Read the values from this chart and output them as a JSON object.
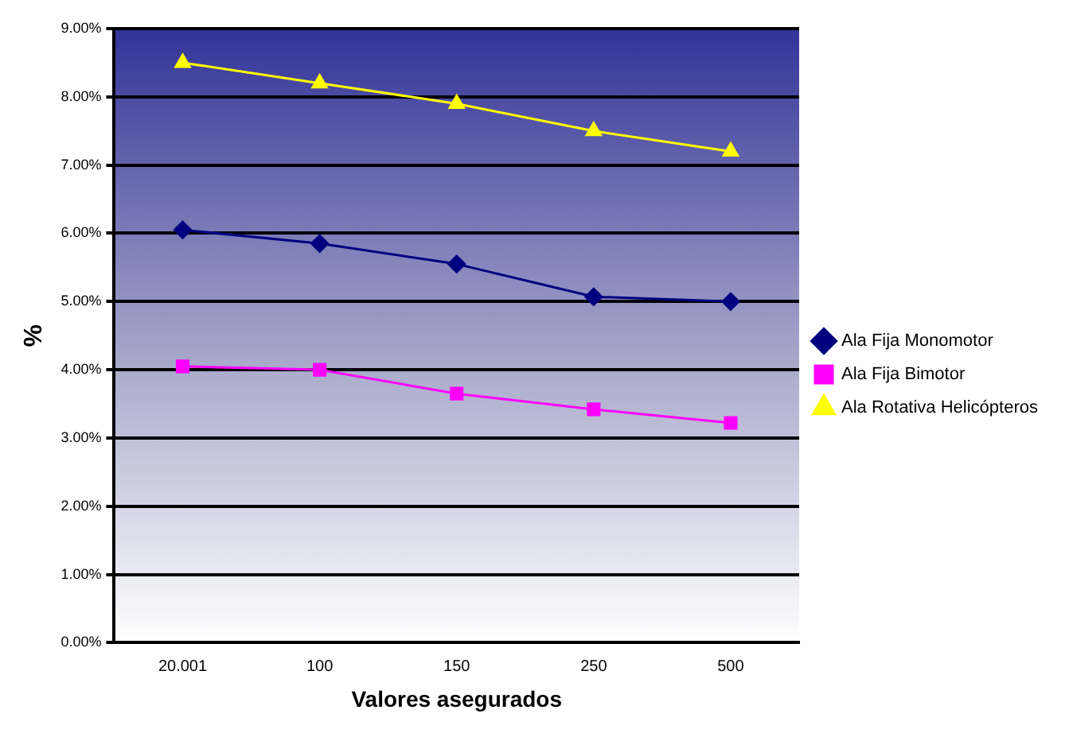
{
  "chart_data": {
    "type": "line",
    "xlabel": "Valores asegurados",
    "ylabel": "%",
    "categories": [
      "20.001",
      "100",
      "150",
      "250",
      "500"
    ],
    "series": [
      {
        "name": "Ala Fija Monomotor",
        "color": "#000080",
        "marker": "diamond",
        "values": [
          6.05,
          5.85,
          5.55,
          5.07,
          5.0
        ]
      },
      {
        "name": "Ala Fija Bimotor",
        "color": "#ff00ff",
        "marker": "square",
        "values": [
          4.05,
          4.0,
          3.65,
          3.42,
          3.22
        ]
      },
      {
        "name": "Ala Rotativa Helicópteros",
        "color": "#ffff00",
        "marker": "triangle",
        "values": [
          8.5,
          8.2,
          7.9,
          7.5,
          7.2
        ]
      }
    ],
    "ylim": [
      0,
      9
    ],
    "yticks": [
      {
        "value": 0,
        "label": "0.00%"
      },
      {
        "value": 1,
        "label": "1.00%"
      },
      {
        "value": 2,
        "label": "2.00%"
      },
      {
        "value": 3,
        "label": "3.00%"
      },
      {
        "value": 4,
        "label": "4.00%"
      },
      {
        "value": 5,
        "label": "5.00%"
      },
      {
        "value": 6,
        "label": "6.00%"
      },
      {
        "value": 7,
        "label": "7.00%"
      },
      {
        "value": 8,
        "label": "8.00%"
      },
      {
        "value": 9,
        "label": "9.00%"
      }
    ],
    "grid": "y",
    "legend": "right",
    "line_style": "solid"
  }
}
